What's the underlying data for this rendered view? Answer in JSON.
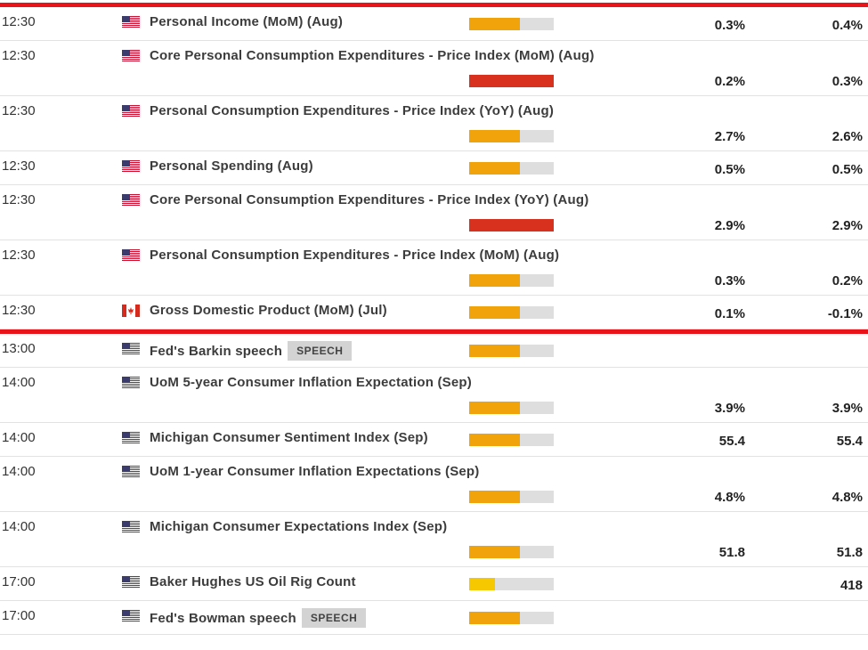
{
  "groups": [
    {
      "rows": [
        {
          "time": "12:30",
          "flag": "us",
          "event": "Personal Income (MoM) (Aug)",
          "impact": "medium",
          "values": [
            "0.3%",
            "0.4%"
          ]
        },
        {
          "time": "12:30",
          "flag": "us",
          "event": "Core Personal Consumption Expenditures - Price Index (MoM) (Aug)",
          "impact": "high",
          "values": [
            "0.2%",
            "0.3%"
          ]
        },
        {
          "time": "12:30",
          "flag": "us",
          "event": "Personal Consumption Expenditures - Price Index (YoY) (Aug)",
          "impact": "medium",
          "values": [
            "2.7%",
            "2.6%"
          ]
        },
        {
          "time": "12:30",
          "flag": "us",
          "event": "Personal Spending (Aug)",
          "impact": "medium",
          "values": [
            "0.5%",
            "0.5%"
          ]
        },
        {
          "time": "12:30",
          "flag": "us",
          "event": "Core Personal Consumption Expenditures - Price Index (YoY) (Aug)",
          "impact": "high",
          "values": [
            "2.9%",
            "2.9%"
          ]
        },
        {
          "time": "12:30",
          "flag": "us",
          "event": "Personal Consumption Expenditures - Price Index (MoM) (Aug)",
          "impact": "medium",
          "values": [
            "0.3%",
            "0.2%"
          ]
        },
        {
          "time": "12:30",
          "flag": "ca",
          "event": "Gross Domestic Product (MoM) (Jul)",
          "impact": "medium",
          "values": [
            "0.1%",
            "-0.1%"
          ]
        }
      ]
    },
    {
      "rows": [
        {
          "time": "13:00",
          "flag": "us",
          "event": "Fed's Barkin speech",
          "badge": "SPEECH",
          "impact": "medium"
        },
        {
          "time": "14:00",
          "flag": "us",
          "event": "UoM 5-year Consumer Inflation Expectation (Sep)",
          "impact": "medium",
          "values": [
            "3.9%",
            "3.9%"
          ]
        },
        {
          "time": "14:00",
          "flag": "us",
          "event": "Michigan Consumer Sentiment Index (Sep)",
          "impact": "medium",
          "values": [
            "55.4",
            "55.4"
          ]
        },
        {
          "time": "14:00",
          "flag": "us",
          "event": "UoM 1-year Consumer Inflation Expectations (Sep)",
          "impact": "medium",
          "values": [
            "4.8%",
            "4.8%"
          ]
        },
        {
          "time": "14:00",
          "flag": "us",
          "event": "Michigan Consumer Expectations Index (Sep)",
          "impact": "medium",
          "values": [
            "51.8",
            "51.8"
          ]
        },
        {
          "time": "17:00",
          "flag": "us",
          "event": "Baker Hughes US Oil Rig Count",
          "impact": "low",
          "values": [
            null,
            "418"
          ]
        },
        {
          "time": "17:00",
          "flag": "us",
          "event": "Fed's Bowman speech",
          "badge": "SPEECH",
          "impact": "medium"
        }
      ]
    }
  ]
}
